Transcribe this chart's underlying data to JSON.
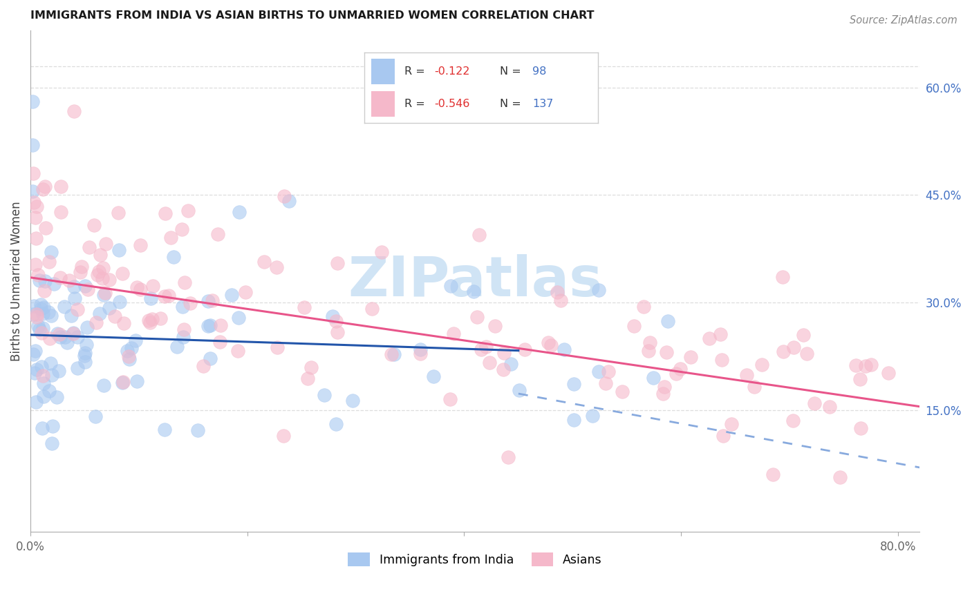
{
  "title": "IMMIGRANTS FROM INDIA VS ASIAN BIRTHS TO UNMARRIED WOMEN CORRELATION CHART",
  "source": "Source: ZipAtlas.com",
  "ylabel": "Births to Unmarried Women",
  "right_yticks": [
    0.15,
    0.3,
    0.45,
    0.6
  ],
  "right_ytick_labels": [
    "15.0%",
    "30.0%",
    "45.0%",
    "60.0%"
  ],
  "xlim": [
    0.0,
    0.82
  ],
  "ylim": [
    -0.02,
    0.68
  ],
  "blue_color": "#A8C8F0",
  "pink_color": "#F5B8CA",
  "line_blue_color": "#2255AA",
  "line_pink_color": "#E8558A",
  "line_dash_color": "#88AADE",
  "watermark_color": "#D0E4F5",
  "title_color": "#1a1a1a",
  "source_color": "#888888",
  "ylabel_color": "#444444",
  "ytick_color": "#4472C4",
  "xtick_color": "#666666",
  "grid_color": "#DDDDDD",
  "legend_edge_color": "#CCCCCC",
  "legend_text_color": "#333333",
  "legend_r_color": "#E03030",
  "legend_n_color": "#4472C4",
  "blue_line_x0": 0.0,
  "blue_line_x1": 0.82,
  "blue_line_y0": 0.255,
  "blue_line_y1": 0.215,
  "pink_line_x0": 0.0,
  "pink_line_x1": 0.82,
  "pink_line_y0": 0.335,
  "pink_line_y1": 0.155,
  "dash_line_x0": 0.45,
  "dash_line_x1": 0.82,
  "dash_line_y0": 0.173,
  "dash_line_y1": 0.07
}
